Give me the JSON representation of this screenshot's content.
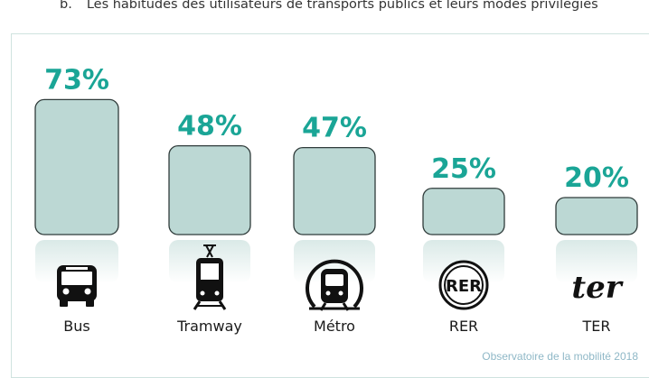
{
  "heading": {
    "number": "b.",
    "text": "Les habitudes des utilisateurs de transports publics et leurs modes privilégiés"
  },
  "chart_data": {
    "type": "bar",
    "categories": [
      "Bus",
      "Tramway",
      "Métro",
      "RER",
      "TER"
    ],
    "values": [
      73,
      48,
      47,
      25,
      20
    ],
    "value_labels": [
      "73%",
      "48%",
      "47%",
      "25%",
      "20%"
    ],
    "icons": [
      "bus-icon",
      "tram-icon",
      "metro-icon",
      "rer-logo-icon",
      "ter-logo-icon"
    ],
    "ylim": [
      0,
      100
    ],
    "grid": false,
    "legend": "none",
    "colors": {
      "bar": "#bcd8d4",
      "bar_stroke": "#2f3b3a",
      "label": "#1aa596",
      "text": "#1a1a1a"
    }
  },
  "source": "Observatoire de la mobilité 2018"
}
